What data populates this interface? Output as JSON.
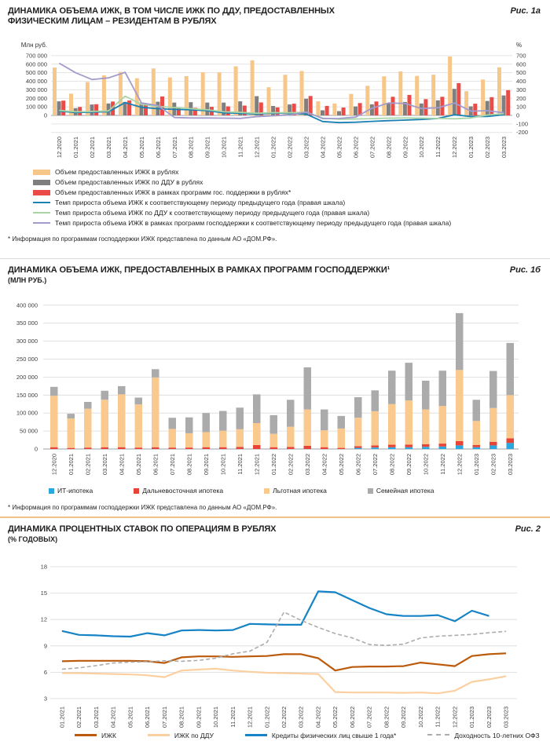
{
  "sections": [
    {
      "title_line1": "ДИНАМИКА ОБЪЕМА ИЖК, В ТОМ ЧИСЛЕ ИЖК ПО ДДУ, ПРЕДОСТАВЛЕННЫХ",
      "title_line2": "ФИЗИЧЕСКИМ ЛИЦАМ – РЕЗИДЕНТАМ В РУБЛЯХ",
      "fig": "Рис. 1а",
      "footnote": "* Информация по программам господдержки ИЖК представлена по данным АО «ДОМ.РФ»."
    },
    {
      "title_line1": "ДИНАМИКА ОБЪЕМА ИЖК, ПРЕДОСТАВЛЕННЫХ В РАМКАХ ПРОГРАММ ГОСПОДДЕРЖКИ¹",
      "subtitle": "(МЛН РУБ.)",
      "fig": "Рис. 1б",
      "footnote": "* Информация по программам господдержки ИЖК представлена по данным АО «ДОМ.РФ»."
    },
    {
      "title_line1": "ДИНАМИКА ПРОЦЕНТНЫХ СТАВОК ПО ОПЕРАЦИЯМ В РУБЛЯХ",
      "subtitle": "(% ГОДОВЫХ)",
      "fig": "Рис. 2"
    }
  ],
  "chart_data": [
    {
      "type": "bar",
      "title": "Динамика объема ИЖК, в том числе ИЖК по ДДУ, предоставленных физическим лицам – резидентам в рублях",
      "left_axis": {
        "label": "Млн руб.",
        "min": 0,
        "max": 700000,
        "step": 100000
      },
      "right_axis": {
        "label": "%",
        "min": -200,
        "max": 700,
        "step": 100
      },
      "categories": [
        "12.2020",
        "01.2021",
        "02.2021",
        "03.2021",
        "04.2021",
        "05.2021",
        "06.2021",
        "07.2021",
        "08.2021",
        "09.2021",
        "10.2021",
        "11.2021",
        "12.2021",
        "01.2022",
        "02.2022",
        "03.2022",
        "04.2022",
        "05.2022",
        "06.2022",
        "07.2022",
        "08.2022",
        "09.2022",
        "10.2022",
        "11.2022",
        "12.2022",
        "01.2023",
        "02.2023",
        "03.2023"
      ],
      "bar_series": [
        {
          "name": "Объем предоставленных ИЖК в рублях",
          "color": "#F7C689",
          "values": [
            560000,
            255000,
            390000,
            470000,
            510000,
            435000,
            550000,
            445000,
            460000,
            505000,
            505000,
            575000,
            645000,
            330000,
            477000,
            521000,
            165000,
            140000,
            252000,
            347000,
            458000,
            515000,
            463000,
            477000,
            691000,
            283000,
            420000,
            563000
          ]
        },
        {
          "name": "Объем предоставленных ИЖК по ДДУ в рублях",
          "color": "#7F7F7F",
          "values": [
            165000,
            85000,
            128000,
            140000,
            158000,
            150000,
            160000,
            150000,
            155000,
            150000,
            150000,
            165000,
            225000,
            110000,
            128000,
            195000,
            60000,
            50000,
            105000,
            130000,
            145000,
            157000,
            140000,
            177000,
            311000,
            106000,
            169000,
            234000
          ]
        },
        {
          "name": "Объем предоставленных ИЖК в рамках программ гос. поддержки в рублях*",
          "color": "#EA4B46",
          "values": [
            173000,
            98000,
            131000,
            162000,
            175000,
            143000,
            222000,
            87000,
            88000,
            100000,
            106000,
            115000,
            152000,
            94000,
            137000,
            227000,
            110000,
            92000,
            144000,
            163000,
            218000,
            240000,
            190000,
            218000,
            378000,
            137000,
            213000,
            295000
          ]
        }
      ],
      "line_series": [
        {
          "name": "Темп прироста объема ИЖК к соответствующему периоду предыдущего года (правая шкала)",
          "color": "#1B80B2",
          "values": [
            50,
            33,
            38,
            43,
            150,
            95,
            78,
            70,
            65,
            55,
            30,
            25,
            15,
            27,
            23,
            15,
            -72,
            -85,
            -80,
            -70,
            -62,
            -55,
            -48,
            -35,
            7,
            -14,
            -12,
            8
          ]
        },
        {
          "name": "Темп прироста объема ИЖК по ДДУ к соответствующему периоду предыдущего года (правая шкала)",
          "color": "#AAD4A5",
          "values": [
            58,
            42,
            46,
            52,
            225,
            130,
            105,
            92,
            78,
            65,
            42,
            35,
            25,
            32,
            30,
            38,
            -32,
            -45,
            -42,
            -38,
            -32,
            -30,
            -32,
            -36,
            -40,
            -30,
            5,
            20
          ]
        },
        {
          "name": "Темп прироста объема ИЖК в рамках программ господдержки к соответствующему периоду предыдущего года (правая шкала)",
          "color": "#A39BCB",
          "values": [
            612,
            500,
            420,
            440,
            505,
            145,
            115,
            -25,
            -30,
            -30,
            -32,
            -35,
            -15,
            -5,
            5,
            40,
            -38,
            -36,
            -20,
            85,
            145,
            140,
            80,
            90,
            145,
            50,
            55,
            30
          ]
        }
      ]
    },
    {
      "type": "bar",
      "subtype": "stacked",
      "title": "Динамика объема ИЖК, предоставленных в рамках программ господдержки (млн руб.)",
      "y_axis": {
        "min": 0,
        "max": 400000,
        "step": 50000
      },
      "categories": [
        "12.2020",
        "01.2021",
        "02.2021",
        "03.2021",
        "04.2021",
        "05.2021",
        "06.2021",
        "07.2021",
        "08.2021",
        "09.2021",
        "10.2021",
        "11.2021",
        "12.2021",
        "01.2022",
        "02.2022",
        "03.2022",
        "04.2022",
        "05.2022",
        "06.2022",
        "07.2022",
        "08.2022",
        "09.2022",
        "10.2022",
        "11.2022",
        "12.2022",
        "01.2023",
        "02.2023",
        "03.2023"
      ],
      "series": [
        {
          "name": "ИТ-ипотека",
          "color": "#29A8E0",
          "values": [
            0,
            0,
            0,
            0,
            0,
            0,
            0,
            0,
            0,
            0,
            0,
            0,
            0,
            0,
            0,
            0,
            0,
            0,
            3000,
            4000,
            5000,
            5000,
            6000,
            7000,
            10000,
            5000,
            10000,
            17000
          ]
        },
        {
          "name": "Дальневосточная ипотека",
          "color": "#E94338",
          "values": [
            5000,
            3000,
            4000,
            5000,
            5000,
            4000,
            5000,
            4000,
            4000,
            5000,
            5000,
            6000,
            11000,
            5000,
            6000,
            9000,
            5000,
            3000,
            5000,
            6000,
            7000,
            7000,
            7000,
            8000,
            12000,
            6000,
            10000,
            13000
          ]
        },
        {
          "name": "Льготная ипотека",
          "color": "#F9C98E",
          "values": [
            143000,
            82000,
            108000,
            132000,
            147000,
            120000,
            194000,
            52000,
            40000,
            42000,
            46000,
            49000,
            61000,
            37000,
            56000,
            101000,
            47000,
            54000,
            79000,
            95000,
            113000,
            123000,
            97000,
            105000,
            198000,
            67000,
            94000,
            120000
          ]
        },
        {
          "name": "Семейная ипотека",
          "color": "#ABABAB",
          "values": [
            25000,
            13000,
            19000,
            25000,
            23000,
            19000,
            23000,
            31000,
            44000,
            53000,
            55000,
            60000,
            80000,
            52000,
            75000,
            117000,
            58000,
            35000,
            57000,
            58000,
            93000,
            105000,
            80000,
            98000,
            158000,
            59000,
            103000,
            145000
          ]
        }
      ]
    },
    {
      "type": "line",
      "title": "Динамика процентных ставок по операциям в рублях (% годовых)",
      "y_axis": {
        "min": 3,
        "max": 18,
        "step": 3
      },
      "categories": [
        "01.2021",
        "02.2021",
        "03.2021",
        "04.2021",
        "05.2021",
        "06.2021",
        "07.2021",
        "08.2021",
        "09.2021",
        "10.2021",
        "11.2021",
        "12.2021",
        "01.2022",
        "02.2022",
        "03.2022",
        "04.2022",
        "05.2022",
        "06.2022",
        "07.2022",
        "08.2022",
        "09.2022",
        "10.2022",
        "11.2022",
        "12.2022",
        "01.2023",
        "02.2023",
        "03.2023"
      ],
      "series": [
        {
          "name": "ИЖК",
          "color": "#BC5A0B",
          "dash": null,
          "values": [
            7.25,
            7.3,
            7.3,
            7.3,
            7.3,
            7.25,
            7.05,
            7.7,
            7.8,
            7.8,
            7.75,
            7.8,
            7.85,
            8.05,
            8.05,
            7.6,
            6.2,
            6.6,
            6.65,
            6.65,
            6.7,
            7.1,
            6.9,
            6.7,
            7.85,
            8.05,
            8.15
          ]
        },
        {
          "name": "ИЖК по ДДУ",
          "color": "#FBCF9F",
          "dash": null,
          "values": [
            5.9,
            5.9,
            5.85,
            5.8,
            5.75,
            5.65,
            5.45,
            6.2,
            6.3,
            6.4,
            6.2,
            6.05,
            5.95,
            5.9,
            5.85,
            5.8,
            3.75,
            3.7,
            3.7,
            3.7,
            3.65,
            3.7,
            3.6,
            3.9,
            4.9,
            5.2,
            5.55
          ]
        },
        {
          "name": "Кредиты физических лиц свыше 1 года*",
          "color": "#1583C5",
          "dash": null,
          "values": [
            10.7,
            10.25,
            10.2,
            10.1,
            10.05,
            10.45,
            10.2,
            10.75,
            10.8,
            10.75,
            10.8,
            11.5,
            11.45,
            11.4,
            11.4,
            15.2,
            15.1,
            14.2,
            13.3,
            12.6,
            12.4,
            12.4,
            12.5,
            11.8,
            13.0,
            12.4,
            null
          ]
        },
        {
          "name": "Доходность 10-летних ОФЗ",
          "color": "#ACACAC",
          "dash": "5,3",
          "values": [
            6.35,
            6.5,
            6.75,
            7.05,
            7.15,
            7.2,
            7.3,
            7.25,
            7.35,
            7.6,
            8.1,
            8.4,
            9.4,
            12.85,
            11.9,
            11.1,
            10.4,
            9.9,
            9.15,
            9.05,
            9.2,
            9.9,
            10.1,
            10.2,
            10.3,
            10.5,
            10.65
          ]
        }
      ]
    }
  ]
}
